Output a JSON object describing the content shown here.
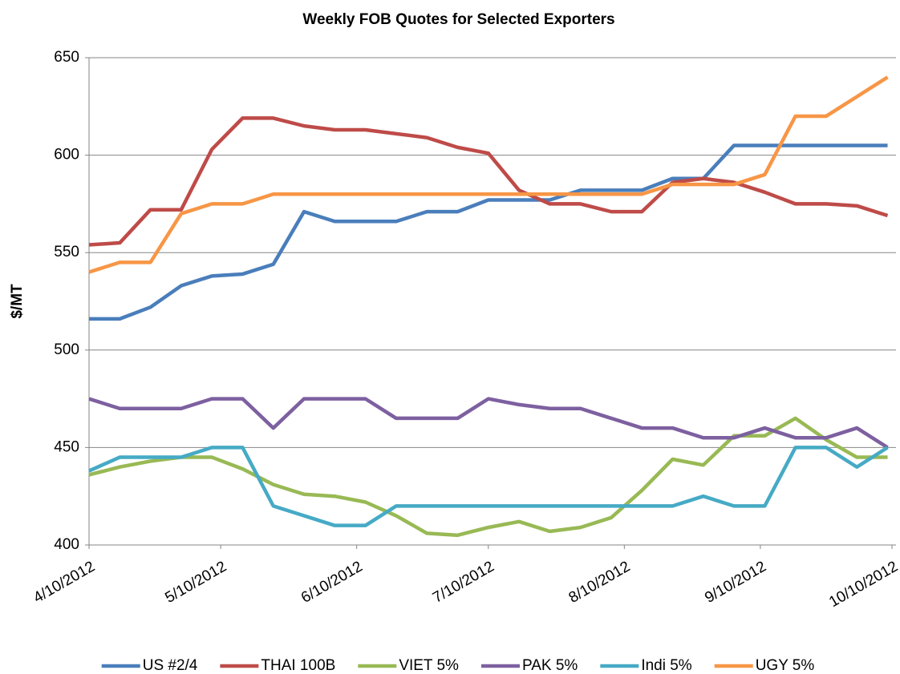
{
  "chart_data": {
    "type": "line",
    "title": "Weekly FOB Quotes for Selected Exporters",
    "y_label": "$/MT",
    "x": [
      "2012-04-10",
      "2012-04-17",
      "2012-04-24",
      "2012-05-01",
      "2012-05-08",
      "2012-05-15",
      "2012-05-22",
      "2012-05-29",
      "2012-06-05",
      "2012-06-12",
      "2012-06-19",
      "2012-06-26",
      "2012-07-03",
      "2012-07-10",
      "2012-07-17",
      "2012-07-24",
      "2012-07-31",
      "2012-08-07",
      "2012-08-14",
      "2012-08-21",
      "2012-08-28",
      "2012-09-04",
      "2012-09-11",
      "2012-09-18",
      "2012-09-25",
      "2012-10-02",
      "2012-10-09"
    ],
    "xlim": [
      "2012-04-10",
      "2012-10-10"
    ],
    "xticks": [
      {
        "value": "2012-04-10",
        "label": "4/10/2012"
      },
      {
        "value": "2012-05-10",
        "label": "5/10/2012"
      },
      {
        "value": "2012-06-10",
        "label": "6/10/2012"
      },
      {
        "value": "2012-07-10",
        "label": "7/10/2012"
      },
      {
        "value": "2012-08-10",
        "label": "8/10/2012"
      },
      {
        "value": "2012-09-10",
        "label": "9/10/2012"
      },
      {
        "value": "2012-10-10",
        "label": "10/10/2012"
      }
    ],
    "ylim": [
      400,
      650
    ],
    "yticks": [
      400,
      450,
      500,
      550,
      600,
      650
    ],
    "grid": true,
    "legend": "bottom",
    "series": [
      {
        "name": "US #2/4",
        "color": "#4a7ebb",
        "values": [
          516,
          516,
          522,
          533,
          538,
          539,
          544,
          571,
          566,
          566,
          566,
          571,
          571,
          577,
          577,
          577,
          582,
          582,
          582,
          588,
          588,
          605,
          605,
          605,
          605,
          605,
          605
        ]
      },
      {
        "name": "THAI 100B",
        "color": "#be4b48",
        "values": [
          554,
          555,
          572,
          572,
          603,
          619,
          619,
          615,
          613,
          613,
          611,
          609,
          604,
          601,
          582,
          575,
          575,
          571,
          571,
          586,
          588,
          586,
          581,
          575,
          575,
          574,
          569
        ]
      },
      {
        "name": "VIET 5%",
        "color": "#98b954",
        "values": [
          436,
          440,
          443,
          445,
          445,
          439,
          431,
          426,
          425,
          422,
          415,
          406,
          405,
          409,
          412,
          407,
          409,
          414,
          428,
          444,
          441,
          456,
          456,
          465,
          454,
          445,
          445
        ]
      },
      {
        "name": "PAK 5%",
        "color": "#7d60a0",
        "values": [
          475,
          470,
          470,
          470,
          475,
          475,
          460,
          475,
          475,
          475,
          465,
          465,
          465,
          475,
          472,
          470,
          470,
          465,
          460,
          460,
          455,
          455,
          460,
          455,
          455,
          460,
          450
        ]
      },
      {
        "name": "Indi 5%",
        "color": "#46aac5",
        "values": [
          438,
          445,
          445,
          445,
          450,
          450,
          420,
          415,
          410,
          410,
          420,
          420,
          420,
          420,
          420,
          420,
          420,
          420,
          420,
          420,
          425,
          420,
          420,
          450,
          450,
          440,
          450
        ]
      },
      {
        "name": "UGY 5%",
        "color": "#f79646",
        "values": [
          540,
          545,
          545,
          570,
          575,
          575,
          580,
          580,
          580,
          580,
          580,
          580,
          580,
          580,
          580,
          580,
          580,
          580,
          580,
          585,
          585,
          585,
          590,
          620,
          620,
          630,
          640
        ]
      }
    ]
  }
}
